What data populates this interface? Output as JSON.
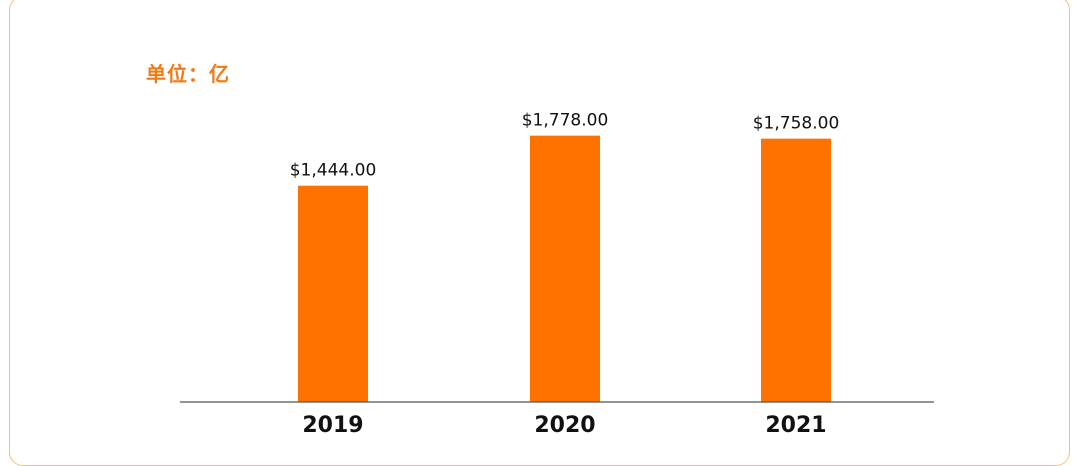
{
  "unit_label": "单位：亿",
  "colors": {
    "bar": "#ff7200",
    "frame": "#f3c27f",
    "unit_text": "#f07a16",
    "axis": "#555555"
  },
  "chart_data": {
    "type": "bar",
    "categories": [
      "2019",
      "2020",
      "2021"
    ],
    "values": [
      1444,
      1778,
      1758
    ],
    "data_labels": [
      "$1,444.00",
      "$1,778.00",
      "$1,758.00"
    ],
    "title": "",
    "xlabel": "",
    "ylabel": "",
    "ylim": [
      0,
      2000
    ],
    "grid": false,
    "legend": "none"
  }
}
